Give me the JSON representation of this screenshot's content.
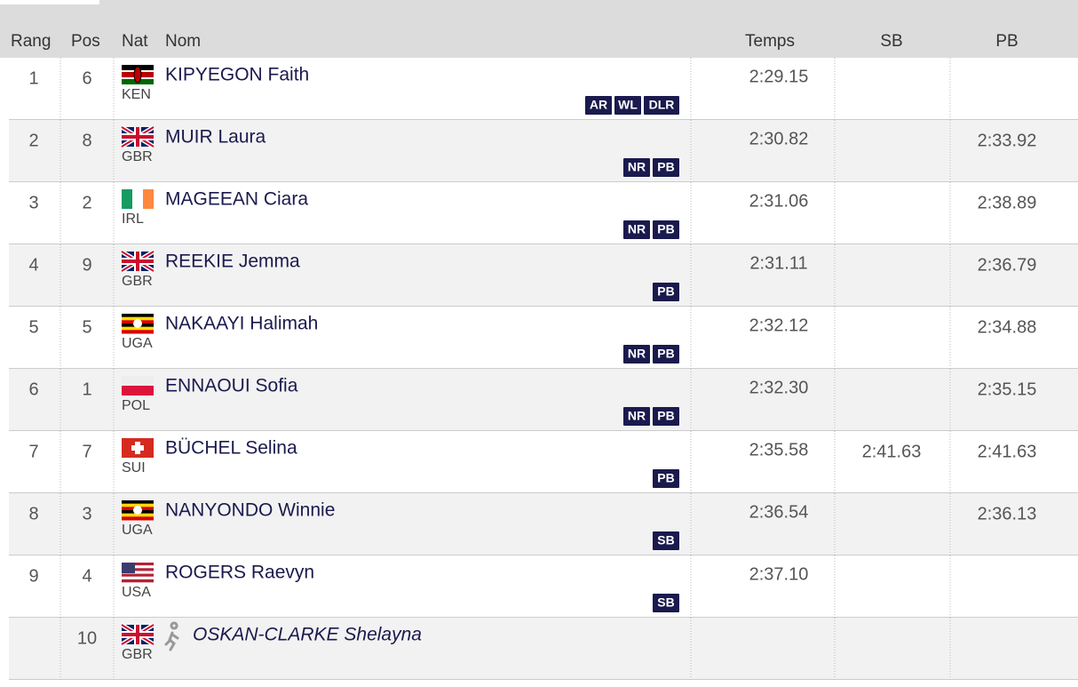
{
  "table": {
    "headers": [
      "Rang",
      "Pos",
      "Nat",
      "Nom",
      "Temps",
      "SB",
      "PB"
    ],
    "rows": [
      {
        "rang": "1",
        "pos": "6",
        "nat": "KEN",
        "name": "KIPYEGON Faith",
        "time": "2:29.15",
        "badges": [
          "AR",
          "WL",
          "DLR"
        ]
      },
      {
        "rang": "2",
        "pos": "8",
        "nat": "GBR",
        "name": "MUIR Laura",
        "time": "2:30.82",
        "pb": "2:33.92",
        "badges": [
          "NR",
          "PB"
        ]
      },
      {
        "rang": "3",
        "pos": "2",
        "nat": "IRL",
        "name": "MAGEEAN Ciara",
        "time": "2:31.06",
        "pb": "2:38.89",
        "badges": [
          "NR",
          "PB"
        ]
      },
      {
        "rang": "4",
        "pos": "9",
        "nat": "GBR",
        "name": "REEKIE Jemma",
        "time": "2:31.11",
        "pb": "2:36.79",
        "badges": [
          "PB"
        ]
      },
      {
        "rang": "5",
        "pos": "5",
        "nat": "UGA",
        "name": "NAKAAYI Halimah",
        "time": "2:32.12",
        "pb": "2:34.88",
        "badges": [
          "NR",
          "PB"
        ]
      },
      {
        "rang": "6",
        "pos": "1",
        "nat": "POL",
        "name": "ENNAOUI Sofia",
        "time": "2:32.30",
        "pb": "2:35.15",
        "badges": [
          "NR",
          "PB"
        ]
      },
      {
        "rang": "7",
        "pos": "7",
        "nat": "SUI",
        "name": "BÜCHEL Selina",
        "time": "2:35.58",
        "sb": "2:41.63",
        "pb": "2:41.63",
        "badges": [
          "PB"
        ]
      },
      {
        "rang": "8",
        "pos": "3",
        "nat": "UGA",
        "name": "NANYONDO Winnie",
        "time": "2:36.54",
        "pb": "2:36.13",
        "badges": [
          "SB"
        ]
      },
      {
        "rang": "9",
        "pos": "4",
        "nat": "USA",
        "name": "ROGERS Raevyn",
        "time": "2:37.10",
        "badges": [
          "SB"
        ]
      },
      {
        "pos": "10",
        "nat": "GBR",
        "name": "OSKAN-CLARKE Shelayna",
        "dnf": true
      }
    ]
  }
}
